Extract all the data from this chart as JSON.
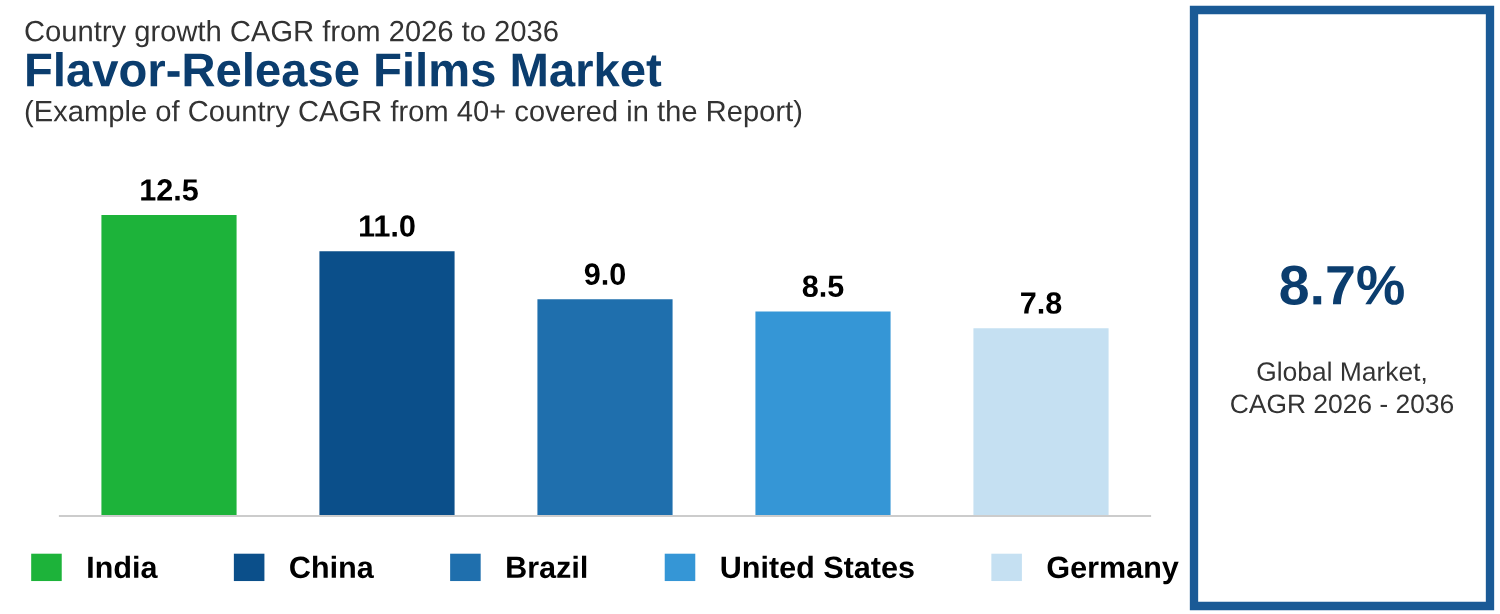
{
  "chart_data": {
    "type": "bar",
    "title": "Flavor-Release Films Market",
    "subtitle": "(Example of Country CAGR from 40+ covered in the Report)",
    "categories": [
      null,
      null,
      null,
      null,
      null
    ],
    "series": [
      {
        "name": "India",
        "color": "#1db33a",
        "values": [
          12.5,
          null,
          null,
          null,
          null
        ],
        "value_labels": [
          "12.5",
          null,
          null,
          null,
          null
        ]
      },
      {
        "name": "China",
        "color": "#0b4f8a",
        "values": [
          null,
          11.0,
          null,
          null,
          null
        ],
        "value_labels": [
          null,
          "11.0",
          null,
          null,
          null
        ]
      },
      {
        "name": "Brazil",
        "color": "#1f6fad",
        "values": [
          null,
          null,
          9.0,
          null,
          null
        ],
        "value_labels": [
          null,
          null,
          "9.0",
          null,
          null
        ]
      },
      {
        "name": "United States",
        "color": "#3596d6",
        "values": [
          null,
          null,
          null,
          8.5,
          null
        ],
        "value_labels": [
          null,
          null,
          null,
          "8.5",
          null
        ]
      },
      {
        "name": "Germany",
        "color": "#c5e0f2",
        "values": [
          null,
          null,
          null,
          null,
          7.8
        ],
        "value_labels": [
          null,
          null,
          null,
          null,
          "7.8"
        ]
      }
    ],
    "stacked": true,
    "legend": "bottom",
    "grid": false,
    "annotations": [
      "Country growth CAGR from 2026 to 2036",
      "8.7%",
      "Global Market,\nCAGR 2026 - 2036"
    ]
  }
}
